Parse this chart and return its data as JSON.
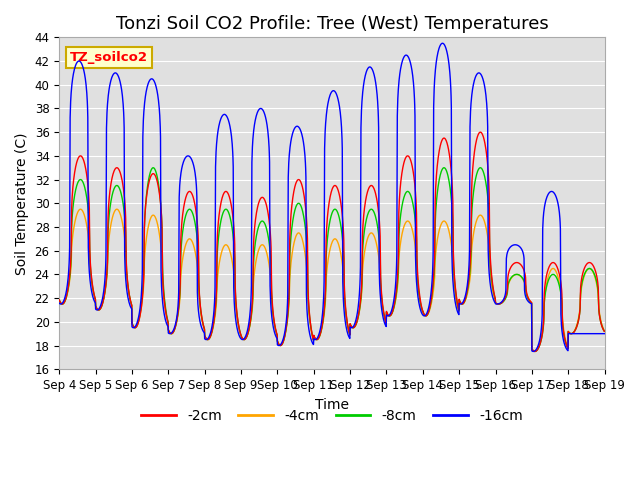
{
  "title": "Tonzi Soil CO2 Profile: Tree (West) Temperatures",
  "xlabel": "Time",
  "ylabel": "Soil Temperature (C)",
  "ylim": [
    16,
    44
  ],
  "x_tick_labels": [
    "Sep 4",
    "Sep 5",
    "Sep 6",
    "Sep 7",
    "Sep 8",
    "Sep 9",
    "Sep 10",
    "Sep 11",
    "Sep 12",
    "Sep 13",
    "Sep 14",
    "Sep 15",
    "Sep 16",
    "Sep 17",
    "Sep 18",
    "Sep 19"
  ],
  "legend_label": "TZ_soilco2",
  "series_labels": [
    "-2cm",
    "-4cm",
    "-8cm",
    "-16cm"
  ],
  "series_colors": [
    "#ff0000",
    "#ffa500",
    "#00cc00",
    "#0000ff"
  ],
  "background_color": "#e0e0e0",
  "fig_background": "#ffffff",
  "n_days": 15,
  "title_fontsize": 13,
  "label_fontsize": 10,
  "tick_fontsize": 8.5,
  "legend_fontsize": 10,
  "linewidth": 1.0,
  "pts_per_day": 144,
  "trough_base": [
    21.5,
    21.0,
    19.5,
    19.0,
    18.5,
    18.5,
    18.0,
    18.5,
    19.5,
    20.5,
    20.5,
    21.5,
    21.5,
    17.5,
    19.0
  ],
  "peak_2cm": [
    34.0,
    33.0,
    32.5,
    31.0,
    31.0,
    30.5,
    32.0,
    31.5,
    31.5,
    34.0,
    35.5,
    36.0,
    25.0,
    25.0,
    25.0
  ],
  "peak_4cm": [
    29.5,
    29.5,
    29.0,
    27.0,
    26.5,
    26.5,
    27.5,
    27.0,
    27.5,
    28.5,
    28.5,
    29.0,
    24.0,
    24.5,
    24.5
  ],
  "peak_8cm": [
    32.0,
    31.5,
    33.0,
    29.5,
    29.5,
    28.5,
    30.0,
    29.5,
    29.5,
    31.0,
    33.0,
    33.0,
    24.0,
    24.0,
    24.5
  ],
  "peak_16cm": [
    42.0,
    41.0,
    40.5,
    34.0,
    37.5,
    38.0,
    36.5,
    39.5,
    41.5,
    42.5,
    43.5,
    41.0,
    26.5,
    31.0,
    19.0
  ],
  "peak_hour_2cm": [
    14.0,
    14.0,
    14.0,
    14.0,
    14.0,
    14.0,
    14.0,
    14.0,
    14.0,
    14.0,
    14.0,
    14.0,
    14.0,
    14.0,
    14.0
  ],
  "peak_hour_16cm": [
    13.0,
    13.0,
    13.0,
    13.0,
    13.0,
    13.0,
    13.0,
    13.0,
    13.0,
    13.0,
    13.0,
    13.0,
    13.0,
    13.0,
    13.0
  ],
  "trough_hour": 5.0,
  "sharpness_2cm": 2.5,
  "sharpness_4cm": 1.8,
  "sharpness_8cm": 2.2,
  "sharpness_16cm": 5.0
}
